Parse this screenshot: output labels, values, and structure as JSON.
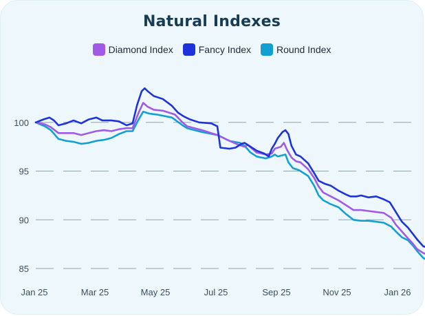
{
  "chart_data": {
    "type": "line",
    "title": "Natural Indexes",
    "xlabel": "",
    "ylabel": "",
    "ylim": [
      84.5,
      105
    ],
    "yticks": [
      85,
      90,
      95,
      100
    ],
    "x_tick_labels": [
      "Jan 25",
      "Mar 25",
      "May 25",
      "Jul 25",
      "Sep 25",
      "Nov 25",
      "Jan 26"
    ],
    "x_tick_months": [
      0,
      2,
      4,
      6,
      8,
      10,
      12
    ],
    "xlim": [
      0,
      12.4
    ],
    "grid": "horizontal dashed",
    "legend_placement": "top-center",
    "series": [
      {
        "name": "Diamond Index",
        "color": "#a05ae6",
        "points": [
          [
            0,
            100
          ],
          [
            0.3,
            99.8
          ],
          [
            0.5,
            99.5
          ],
          [
            0.75,
            98.9
          ],
          [
            1,
            98.9
          ],
          [
            1.25,
            98.9
          ],
          [
            1.5,
            98.7
          ],
          [
            1.75,
            98.9
          ],
          [
            2,
            99.1
          ],
          [
            2.25,
            99.2
          ],
          [
            2.5,
            99.1
          ],
          [
            2.75,
            99.3
          ],
          [
            3,
            99.4
          ],
          [
            3.2,
            99.4
          ],
          [
            3.4,
            101
          ],
          [
            3.55,
            102
          ],
          [
            3.7,
            101.6
          ],
          [
            3.9,
            101.3
          ],
          [
            4.2,
            101.2
          ],
          [
            4.6,
            100.8
          ],
          [
            4.85,
            100
          ],
          [
            5,
            99.6
          ],
          [
            5.5,
            99.2
          ],
          [
            6,
            98.7
          ],
          [
            6.4,
            98.1
          ],
          [
            6.7,
            97.7
          ],
          [
            6.9,
            97.5
          ],
          [
            7,
            97.7
          ],
          [
            7.3,
            96.9
          ],
          [
            7.6,
            96.7
          ],
          [
            7.8,
            96.8
          ],
          [
            7.9,
            97.3
          ],
          [
            8.1,
            97.5
          ],
          [
            8.2,
            97.9
          ],
          [
            8.3,
            97.2
          ],
          [
            8.45,
            96.4
          ],
          [
            8.6,
            96
          ],
          [
            8.75,
            95.9
          ],
          [
            9,
            95.2
          ],
          [
            9.2,
            94.3
          ],
          [
            9.35,
            93.4
          ],
          [
            9.5,
            92.8
          ],
          [
            9.75,
            92.4
          ],
          [
            10,
            92
          ],
          [
            10.3,
            91.4
          ],
          [
            10.5,
            91
          ],
          [
            10.75,
            91
          ],
          [
            11,
            90.9
          ],
          [
            11.25,
            90.8
          ],
          [
            11.5,
            90.7
          ],
          [
            11.75,
            90.2
          ],
          [
            11.9,
            89.5
          ],
          [
            12.1,
            88.8
          ],
          [
            12.3,
            88.1
          ],
          [
            12.45,
            87.6
          ],
          [
            12.6,
            87
          ],
          [
            12.8,
            86.6
          ],
          [
            12.95,
            86.4
          ]
        ]
      },
      {
        "name": "Fancy Index",
        "color": "#1e32dc",
        "points": [
          [
            0,
            100
          ],
          [
            0.25,
            100.3
          ],
          [
            0.45,
            100.5
          ],
          [
            0.6,
            100.2
          ],
          [
            0.75,
            99.7
          ],
          [
            1,
            99.9
          ],
          [
            1.25,
            100.2
          ],
          [
            1.5,
            99.9
          ],
          [
            1.75,
            100.3
          ],
          [
            2,
            100.5
          ],
          [
            2.2,
            100.2
          ],
          [
            2.5,
            100.2
          ],
          [
            2.75,
            100.1
          ],
          [
            3,
            99.7
          ],
          [
            3.2,
            99.9
          ],
          [
            3.35,
            101.8
          ],
          [
            3.5,
            103.2
          ],
          [
            3.6,
            103.5
          ],
          [
            3.7,
            103.2
          ],
          [
            3.9,
            102.7
          ],
          [
            4.2,
            102.4
          ],
          [
            4.5,
            101.7
          ],
          [
            4.7,
            101
          ],
          [
            4.9,
            100.6
          ],
          [
            5.1,
            100.3
          ],
          [
            5.4,
            100
          ],
          [
            5.8,
            99.9
          ],
          [
            6,
            99.6
          ],
          [
            6.1,
            97.4
          ],
          [
            6.4,
            97.3
          ],
          [
            6.6,
            97.4
          ],
          [
            6.8,
            97.8
          ],
          [
            6.9,
            97.9
          ],
          [
            7.05,
            97.6
          ],
          [
            7.3,
            97.1
          ],
          [
            7.55,
            96.8
          ],
          [
            7.7,
            96.5
          ],
          [
            7.8,
            97.3
          ],
          [
            7.9,
            97.8
          ],
          [
            8,
            98.4
          ],
          [
            8.15,
            99
          ],
          [
            8.25,
            99.2
          ],
          [
            8.35,
            98.8
          ],
          [
            8.45,
            97.6
          ],
          [
            8.6,
            96.7
          ],
          [
            8.75,
            96.5
          ],
          [
            9,
            95.8
          ],
          [
            9.2,
            94.8
          ],
          [
            9.35,
            94
          ],
          [
            9.55,
            93.7
          ],
          [
            9.75,
            93.5
          ],
          [
            10,
            93
          ],
          [
            10.25,
            92.6
          ],
          [
            10.4,
            92.4
          ],
          [
            10.6,
            92.4
          ],
          [
            10.75,
            92.5
          ],
          [
            11,
            92.3
          ],
          [
            11.25,
            92.4
          ],
          [
            11.5,
            92.1
          ],
          [
            11.7,
            91.8
          ],
          [
            11.9,
            90.8
          ],
          [
            12.1,
            89.8
          ],
          [
            12.3,
            89.2
          ],
          [
            12.45,
            88.6
          ],
          [
            12.6,
            88
          ],
          [
            12.8,
            87.3
          ],
          [
            12.95,
            87.1
          ]
        ]
      },
      {
        "name": "Round Index",
        "color": "#12a0d2",
        "points": [
          [
            0,
            100
          ],
          [
            0.3,
            99.6
          ],
          [
            0.5,
            99.2
          ],
          [
            0.75,
            98.3
          ],
          [
            1,
            98.1
          ],
          [
            1.25,
            98
          ],
          [
            1.5,
            97.8
          ],
          [
            1.75,
            97.9
          ],
          [
            2,
            98.1
          ],
          [
            2.25,
            98.2
          ],
          [
            2.5,
            98.4
          ],
          [
            2.75,
            98.8
          ],
          [
            3,
            99.1
          ],
          [
            3.2,
            99.1
          ],
          [
            3.4,
            100.3
          ],
          [
            3.55,
            101.1
          ],
          [
            3.75,
            100.9
          ],
          [
            4,
            100.8
          ],
          [
            4.5,
            100.5
          ],
          [
            4.85,
            99.7
          ],
          [
            5,
            99.4
          ],
          [
            5.5,
            99
          ],
          [
            6,
            98.7
          ],
          [
            6.4,
            98.1
          ],
          [
            6.75,
            97.9
          ],
          [
            6.9,
            97.6
          ],
          [
            7.1,
            96.9
          ],
          [
            7.3,
            96.5
          ],
          [
            7.6,
            96.3
          ],
          [
            7.8,
            96.5
          ],
          [
            7.9,
            96.7
          ],
          [
            8,
            96.5
          ],
          [
            8.25,
            96.7
          ],
          [
            8.35,
            95.9
          ],
          [
            8.5,
            95.3
          ],
          [
            8.7,
            95.1
          ],
          [
            9,
            94.5
          ],
          [
            9.2,
            93.5
          ],
          [
            9.35,
            92.5
          ],
          [
            9.5,
            92
          ],
          [
            9.75,
            91.6
          ],
          [
            10,
            91.3
          ],
          [
            10.25,
            90.6
          ],
          [
            10.5,
            90
          ],
          [
            10.75,
            89.9
          ],
          [
            11,
            89.9
          ],
          [
            11.25,
            89.8
          ],
          [
            11.5,
            89.7
          ],
          [
            11.75,
            89.3
          ],
          [
            11.9,
            88.8
          ],
          [
            12.1,
            88.2
          ],
          [
            12.3,
            87.9
          ],
          [
            12.45,
            87.4
          ],
          [
            12.6,
            86.8
          ],
          [
            12.8,
            86.1
          ],
          [
            12.95,
            85.8
          ]
        ]
      }
    ]
  }
}
